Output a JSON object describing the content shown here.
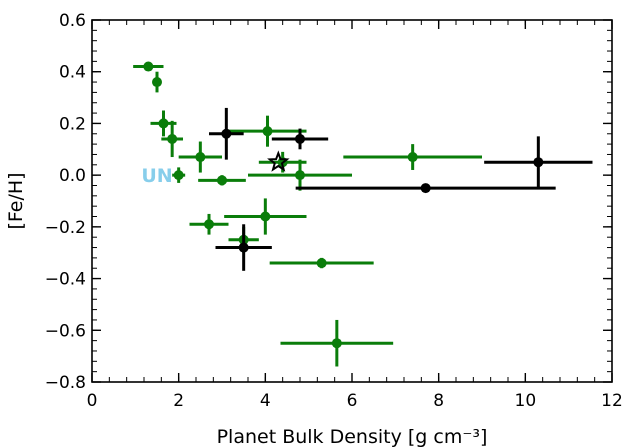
{
  "chart_data": {
    "type": "scatter",
    "xlabel": "Planet Bulk Density [g cm⁻³]",
    "ylabel": "[Fe/H]",
    "xlim": [
      0,
      12
    ],
    "ylim": [
      -0.8,
      0.6
    ],
    "xticks": [
      0,
      2,
      4,
      6,
      8,
      10,
      12
    ],
    "xtick_labels": [
      "0",
      "2",
      "4",
      "6",
      "8",
      "10",
      "12"
    ],
    "yticks": [
      -0.8,
      -0.6,
      -0.4,
      -0.2,
      0.0,
      0.2,
      0.4,
      0.6
    ],
    "ytick_labels": [
      "−0.8",
      "−0.6",
      "−0.4",
      "−0.2",
      "0.0",
      "0.2",
      "0.4",
      "0.6"
    ],
    "x_minor_step": 0.4,
    "y_minor_step": 0.04,
    "grid": false,
    "colors": {
      "green": "#0a7d0a",
      "black": "#000000",
      "annotation": "#87ceeb"
    },
    "series": [
      {
        "color": "#0a7d0a",
        "points": [
          {
            "x": 1.3,
            "y": 0.42,
            "xerr": 0.35,
            "yerr": 0.0
          },
          {
            "x": 1.5,
            "y": 0.36,
            "xerr": 0.1,
            "yerr": 0.04
          },
          {
            "x": 1.65,
            "y": 0.2,
            "xerr": 0.3,
            "yerr": 0.05
          },
          {
            "x": 1.85,
            "y": 0.14,
            "xerr": 0.25,
            "yerr": 0.07
          },
          {
            "x": 2.0,
            "y": 0.0,
            "xerr": 0.15,
            "yerr": 0.03
          },
          {
            "x": 2.5,
            "y": 0.07,
            "xerr": 0.5,
            "yerr": 0.06
          },
          {
            "x": 2.7,
            "y": -0.19,
            "xerr": 0.45,
            "yerr": 0.04
          },
          {
            "x": 3.0,
            "y": -0.02,
            "xerr": 0.55,
            "yerr": 0.02
          },
          {
            "x": 3.5,
            "y": -0.25,
            "xerr": 0.35,
            "yerr": 0.05
          },
          {
            "x": 4.0,
            "y": -0.16,
            "xerr": 0.95,
            "yerr": 0.07
          },
          {
            "x": 4.05,
            "y": 0.17,
            "xerr": 0.9,
            "yerr": 0.06
          },
          {
            "x": 4.4,
            "y": 0.05,
            "xerr": 0.55,
            "yerr": 0.04
          },
          {
            "x": 4.8,
            "y": 0.0,
            "xerr": 1.2,
            "yerr": 0.06
          },
          {
            "x": 5.3,
            "y": -0.34,
            "xerr": 1.2,
            "yerr": 0.02
          },
          {
            "x": 5.65,
            "y": -0.65,
            "xerr": 1.3,
            "yerr": 0.09
          },
          {
            "x": 7.4,
            "y": 0.07,
            "xerr": 1.6,
            "yerr": 0.05
          }
        ]
      },
      {
        "color": "#000000",
        "points": [
          {
            "x": 3.1,
            "y": 0.16,
            "xerr": 0.4,
            "yerr": 0.1
          },
          {
            "x": 3.5,
            "y": -0.28,
            "xerr": 0.65,
            "yerr": 0.09
          },
          {
            "x": 4.8,
            "y": 0.14,
            "xerr": 0.65,
            "yerr": 0.04
          },
          {
            "x": 7.7,
            "y": -0.05,
            "xerr": 3.0,
            "yerr": 0.0
          },
          {
            "x": 10.3,
            "y": 0.05,
            "xerr": 1.25,
            "yerr": 0.1
          }
        ]
      }
    ],
    "star_marker": {
      "x": 4.3,
      "y": 0.05
    },
    "annotations": [
      {
        "text": "UN",
        "x": 1.5,
        "y": 0.0
      }
    ]
  }
}
